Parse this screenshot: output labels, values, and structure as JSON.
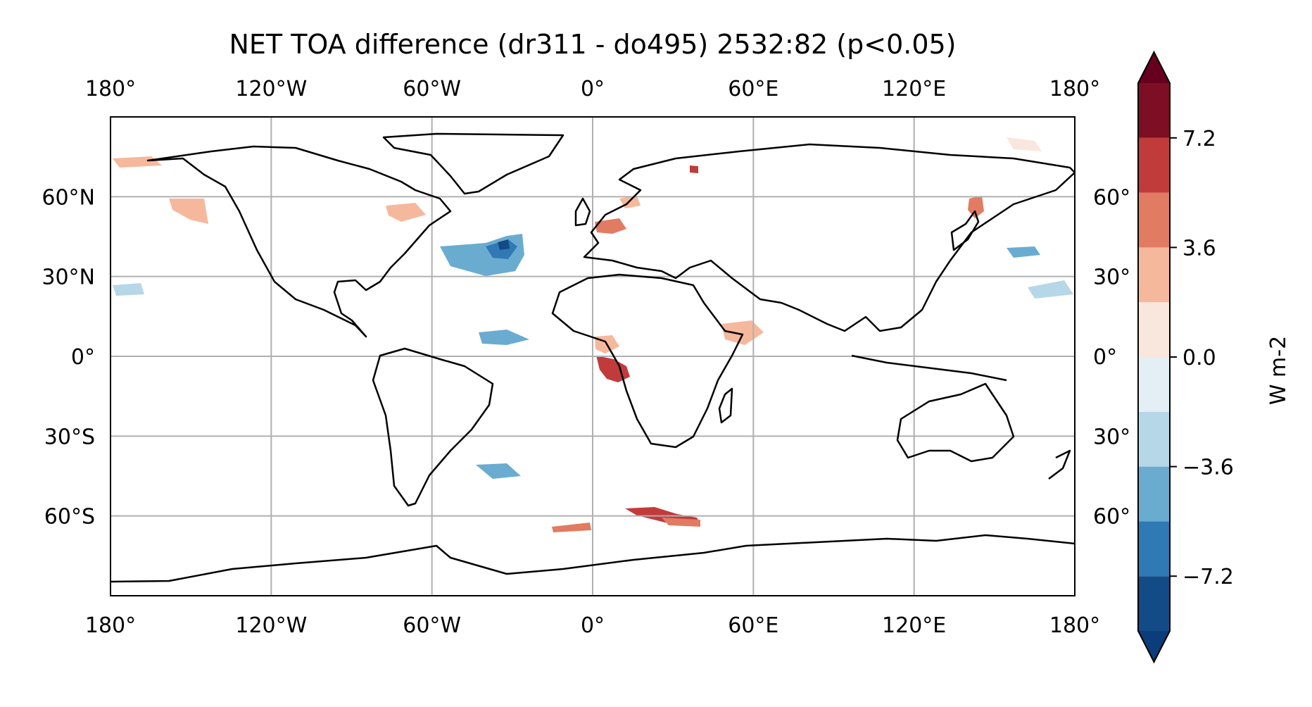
{
  "map": {
    "title": "NET TOA difference (dr311 - do495) 2532:82 (p<0.05)",
    "projection": "PlateCarree",
    "lon_range": [
      -180,
      180
    ],
    "lat_range": [
      -90,
      90
    ],
    "gridlines": true,
    "x_ticks_top": [
      "180°",
      "120°W",
      "60°W",
      "0°",
      "60°E",
      "120°E",
      "180°"
    ],
    "x_ticks_bottom": [
      "180°",
      "120°W",
      "60°W",
      "0°",
      "60°E",
      "120°E",
      "180°"
    ],
    "y_ticks_left": [
      "60°N",
      "30°N",
      "0°",
      "30°S",
      "60°S"
    ],
    "y_ticks_right": [
      "60°",
      "30°",
      "0°",
      "30°",
      "60°"
    ],
    "tick_lons": [
      -180,
      -120,
      -60,
      0,
      60,
      120,
      180
    ],
    "tick_lats": [
      60,
      30,
      0,
      -30,
      -60
    ]
  },
  "colorbar": {
    "label": "W m-2",
    "tick_labels": [
      "7.2",
      "3.6",
      "0.0",
      "−3.6",
      "−7.2"
    ],
    "tick_values": [
      7.2,
      3.6,
      0.0,
      -3.6,
      -7.2
    ],
    "levels": [
      -9,
      -7.2,
      -5.4,
      -3.6,
      -1.8,
      0,
      1.8,
      3.6,
      5.4,
      7.2,
      9
    ],
    "extend": "both",
    "colors": [
      "#0b3d7a",
      "#134b87",
      "#2f79b5",
      "#6aacd0",
      "#b6d7e8",
      "#e4eef5",
      "#f9e6dd",
      "#f6b89c",
      "#e17b62",
      "#c23b3b",
      "#7d0e23",
      "#67001f"
    ]
  },
  "chart_data": {
    "type": "heatmap",
    "title": "NET TOA difference (dr311 - do495) 2532:82 (p<0.05)",
    "units": "W m-2",
    "significance": "p<0.05",
    "anomalies": [
      {
        "region": "North Atlantic",
        "sign": "negative",
        "approx_value": -6.0
      },
      {
        "region": "Gulf of Guinea / Angola coast",
        "sign": "positive",
        "approx_value": 7.0
      },
      {
        "region": "Southern Ocean south of Africa",
        "sign": "positive",
        "approx_value": 7.0
      },
      {
        "region": "Equatorial Atlantic",
        "sign": "negative",
        "approx_value": -3.0
      },
      {
        "region": "South Atlantic (45°S)",
        "sign": "negative",
        "approx_value": -4.0
      },
      {
        "region": "Western Europe",
        "sign": "positive",
        "approx_value": 4.0
      },
      {
        "region": "Canada / Labrador",
        "sign": "positive",
        "approx_value": 3.0
      },
      {
        "region": "East Africa / Horn",
        "sign": "positive",
        "approx_value": 2.5
      },
      {
        "region": "North Pacific (east of Japan)",
        "sign": "negative",
        "approx_value": -3.0
      },
      {
        "region": "Sea of Okhotsk / Japan",
        "sign": "positive",
        "approx_value": 5.0
      }
    ]
  }
}
